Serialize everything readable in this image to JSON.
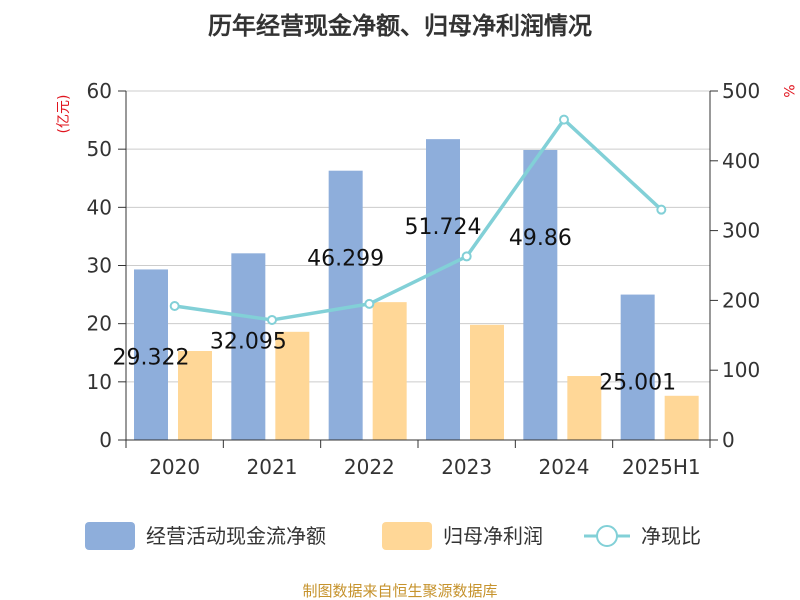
{
  "colors": {
    "bar1": "#8eaedb",
    "bar2": "#ffd797",
    "line": "#82d0d7",
    "axis": "#333333",
    "grid": "#cccccc",
    "unit": "#e0141e",
    "source": "#c6932d"
  },
  "chart_data": {
    "type": "bar",
    "title": "历年经营现金净额、归母净利润情况",
    "categories": [
      "2020",
      "2021",
      "2022",
      "2023",
      "2024",
      "2025H1"
    ],
    "y_left": {
      "unit": "(亿元)",
      "ylim": [
        0,
        60
      ],
      "ticks": [
        "0",
        "10",
        "20",
        "30",
        "40",
        "50",
        "60"
      ]
    },
    "y_right": {
      "unit": "%",
      "ylim": [
        0,
        500
      ],
      "ticks": [
        "0",
        "100",
        "200",
        "300",
        "400",
        "500"
      ]
    },
    "grid": true,
    "legend_position": "bottom",
    "series": [
      {
        "name": "经营活动现金流净额",
        "type": "bar",
        "axis": "left",
        "values": [
          29.322,
          32.095,
          46.299,
          51.724,
          49.86,
          25.001
        ],
        "labels": [
          "29.322",
          "32.095",
          "46.299",
          "51.724",
          "49.86",
          "25.001"
        ]
      },
      {
        "name": "归母净利润",
        "type": "bar",
        "axis": "left",
        "values": [
          15.3,
          18.6,
          23.7,
          19.8,
          11.0,
          7.6
        ]
      },
      {
        "name": "净现比",
        "type": "line",
        "axis": "right",
        "values": [
          192,
          172,
          195,
          263,
          459,
          330
        ]
      }
    ],
    "source": "制图数据来自恒生聚源数据库"
  }
}
